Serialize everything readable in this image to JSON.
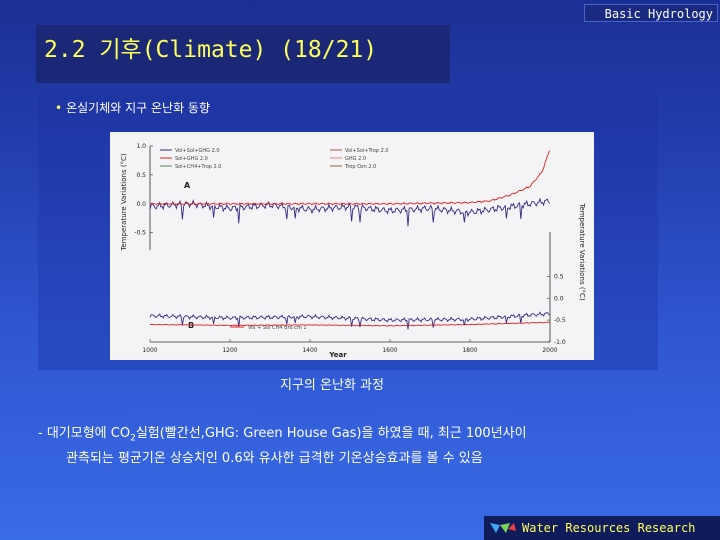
{
  "header": {
    "corner_label": "Basic Hydrology",
    "title": "2.2 기후(Climate) (18/21)"
  },
  "section": {
    "bullet": "온실기체와 지구 온난화 동향",
    "caption": "지구의 온난화 과정"
  },
  "body": {
    "line1_prefix": "- 대기모형에 CO",
    "line1_sub": "2",
    "line1_suffix": "실험(빨간선,GHG: Green House Gas)을 하였을 때, 최근 100년사이",
    "line2": "관측되는 평균기온 상승치인 0.6와 유사한 급격한 기온상승효과를 볼 수 있음"
  },
  "footer": {
    "text": "Water Resources Research"
  },
  "colors": {
    "background_top": "#1a2f95",
    "title_yellow": "#ffff5a",
    "red_series": "#e02020",
    "purple_series": "#3a2a80"
  },
  "chart_data": {
    "type": "line",
    "xlabel": "Year",
    "ylabel_left": "Temperature Variations (°C)",
    "ylabel_right": "Temperature Variations (°C)",
    "x_ticks": [
      "1000",
      "1200",
      "1400",
      "1600",
      "1800",
      "2000"
    ],
    "y_ticks_left": [
      "1.0",
      "0.5",
      "0.0",
      "-0.5"
    ],
    "y_ticks_right": [
      "0.5",
      "0.0",
      "-0.5",
      "-1.0"
    ],
    "xlim": [
      1000,
      2000
    ],
    "panel_a": {
      "label": "A",
      "ylim": [
        -0.8,
        1.0
      ],
      "legend": [
        "Vol+Sol+GHG 2.0",
        "Vol+Sol+Trop 2.0",
        "Sol+GHG 2.0",
        "GHG 2.0",
        "Sol+CH4+Trop 2.0",
        "Trop Ozn 2.0"
      ],
      "series": [
        {
          "name": "GHG (red)",
          "x": [
            1000,
            1200,
            1400,
            1600,
            1800,
            1850,
            1900,
            1950,
            1980,
            2000
          ],
          "values": [
            0.0,
            0.0,
            0.0,
            0.0,
            0.02,
            0.05,
            0.15,
            0.3,
            0.55,
            0.95
          ]
        },
        {
          "name": "Vol+Sol (purple)",
          "x": [
            1000,
            1100,
            1200,
            1300,
            1400,
            1500,
            1600,
            1700,
            1800,
            1900,
            2000
          ],
          "values": [
            -0.05,
            0.0,
            -0.08,
            -0.02,
            -0.1,
            -0.05,
            -0.12,
            -0.08,
            -0.15,
            -0.05,
            0.05
          ]
        }
      ]
    },
    "panel_b": {
      "label": "B",
      "legend": [
        "Vol + Sol CH4 Bro cm 1"
      ],
      "series": [
        {
          "name": "Vol+Sol (purple)",
          "x": [
            1000,
            1200,
            1400,
            1600,
            1800,
            2000
          ],
          "values": [
            -0.4,
            -0.45,
            -0.42,
            -0.5,
            -0.48,
            -0.35
          ]
        },
        {
          "name": "Vol+Sol+CH4 (red)",
          "x": [
            1000,
            1200,
            1400,
            1600,
            1800,
            2000
          ],
          "values": [
            -0.6,
            -0.62,
            -0.61,
            -0.63,
            -0.6,
            -0.55
          ]
        }
      ]
    }
  }
}
